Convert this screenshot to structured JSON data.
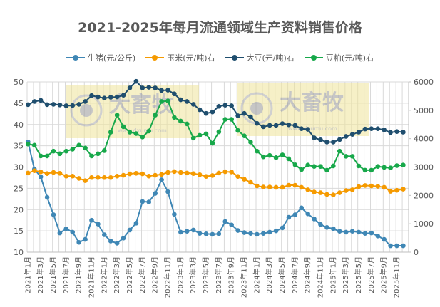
{
  "chart_data": {
    "type": "line",
    "title": "2021-2025年每月流通领域生产资料销售价格",
    "x": [
      "2021年1月",
      "2021年2月",
      "2021年3月",
      "2021年4月",
      "2021年5月",
      "2021年6月",
      "2021年7月",
      "2021年8月",
      "2021年9月",
      "2021年10月",
      "2021年11月",
      "2021年12月",
      "2022年1月",
      "2022年2月",
      "2022年3月",
      "2022年4月",
      "2022年5月",
      "2022年6月",
      "2022年7月",
      "2022年8月",
      "2022年9月",
      "2022年10月",
      "2022年11月",
      "2022年12月",
      "2023年1月",
      "2023年2月",
      "2023年3月",
      "2023年4月",
      "2023年5月",
      "2023年6月",
      "2023年7月",
      "2023年8月",
      "2023年9月",
      "2023年10月",
      "2023年11月",
      "2023年12月",
      "2024年1月",
      "2024年2月",
      "2024年3月",
      "2024年4月",
      "2024年5月",
      "2024年6月",
      "2024年7月",
      "2024年8月",
      "2024年9月",
      "2024年10月",
      "2024年11月",
      "2024年12月",
      "2025年1月",
      "2025年2月",
      "2025年3月",
      "2025年4月",
      "2025年5月",
      "2025年6月",
      "2025年7月",
      "2025年8月",
      "2025年9月",
      "2025年10月",
      "2025年11月",
      "2025年12月"
    ],
    "x_tick_labels": [
      "2021年1月",
      "2021年3月",
      "2021年5月",
      "2021年7月",
      "2021年9月",
      "2021年11月",
      "2022年1月",
      "2022年3月",
      "2022年5月",
      "2022年7月",
      "2022年9月",
      "2022年11月",
      "2023年1月",
      "2023年3月",
      "2023年5月",
      "2023年7月",
      "2023年9月",
      "2023年11月",
      "2024年1月",
      "2024年3月",
      "2024年5月",
      "2024年7月",
      "2024年9月",
      "2024年11月",
      "2025年1月",
      "2025年3月",
      "2025年5月",
      "2025年7月",
      "2025年9月",
      "2025年11月"
    ],
    "y_left": {
      "range": [
        10,
        50
      ],
      "ticks": [
        "10",
        "15",
        "20",
        "25",
        "30",
        "35",
        "40",
        "45",
        "50"
      ]
    },
    "y_right": {
      "range": [
        0,
        6000
      ],
      "ticks": [
        "0",
        "1000",
        "2000",
        "3000",
        "4000",
        "5000",
        "6000"
      ]
    },
    "grid": true,
    "legend_position": "top",
    "series": [
      {
        "name": "生猪(元/公斤)",
        "axis": "left",
        "color": "#3f87b5",
        "values": [
          35.9,
          29.5,
          27.7,
          22.9,
          18.8,
          14.5,
          15.5,
          14.7,
          12.3,
          13.0,
          17.5,
          16.6,
          14.1,
          12.6,
          12.1,
          13.3,
          15.2,
          16.8,
          21.9,
          21.8,
          23.8,
          27.0,
          24.2,
          18.9,
          14.7,
          14.9,
          15.2,
          14.4,
          14.3,
          14.2,
          14.3,
          17.2,
          16.4,
          15.1,
          14.6,
          14.4,
          14.2,
          14.4,
          14.7,
          15.0,
          15.7,
          18.2,
          18.8,
          20.4,
          19.0,
          17.8,
          16.5,
          15.8,
          15.5,
          14.9,
          14.7,
          14.9,
          14.7,
          14.4,
          14.5,
          13.8,
          13.0,
          11.5,
          11.5,
          11.5
        ]
      },
      {
        "name": "玉米(元/吨)右",
        "axis": "right",
        "color": "#f59a00",
        "values": [
          2790,
          2870,
          2830,
          2770,
          2810,
          2780,
          2680,
          2680,
          2600,
          2520,
          2630,
          2630,
          2630,
          2630,
          2680,
          2710,
          2760,
          2780,
          2760,
          2680,
          2710,
          2740,
          2810,
          2840,
          2810,
          2790,
          2770,
          2730,
          2670,
          2700,
          2790,
          2835,
          2825,
          2670,
          2570,
          2460,
          2335,
          2295,
          2295,
          2285,
          2285,
          2360,
          2360,
          2285,
          2200,
          2120,
          2095,
          2035,
          2020,
          2095,
          2170,
          2200,
          2310,
          2350,
          2335,
          2320,
          2285,
          2145,
          2180,
          2220
        ]
      },
      {
        "name": "大豆(元/吨)右",
        "axis": "right",
        "color": "#1f4e6e",
        "values": [
          5200,
          5310,
          5350,
          5200,
          5210,
          5190,
          5160,
          5170,
          5210,
          5310,
          5520,
          5470,
          5430,
          5460,
          5470,
          5530,
          5790,
          6020,
          5790,
          5810,
          5790,
          5700,
          5710,
          5580,
          5370,
          5310,
          5210,
          5020,
          4890,
          4940,
          5140,
          5180,
          5160,
          4810,
          4890,
          4770,
          4540,
          4420,
          4470,
          4470,
          4530,
          4490,
          4470,
          4350,
          4330,
          4030,
          3960,
          3880,
          3880,
          3970,
          4080,
          4150,
          4230,
          4340,
          4350,
          4350,
          4310,
          4220,
          4250,
          4230
        ]
      },
      {
        "name": "豆粕(元/吨)右",
        "axis": "right",
        "color": "#17a84a",
        "values": [
          3810,
          3770,
          3390,
          3390,
          3560,
          3470,
          3560,
          3630,
          3770,
          3670,
          3390,
          3470,
          3580,
          4230,
          4830,
          4420,
          4230,
          4180,
          4060,
          4270,
          4830,
          5310,
          5330,
          4750,
          4620,
          4520,
          4020,
          4120,
          4170,
          3840,
          4240,
          4680,
          4680,
          4290,
          4100,
          3880,
          3560,
          3360,
          3410,
          3330,
          3430,
          3290,
          3080,
          2910,
          3070,
          3020,
          3020,
          2890,
          3040,
          3560,
          3380,
          3380,
          3040,
          2890,
          2890,
          3020,
          2990,
          2970,
          3050,
          3070
        ]
      }
    ]
  },
  "watermark": {
    "text": "大畜牧",
    "url_text": "www.dxumu.com"
  }
}
